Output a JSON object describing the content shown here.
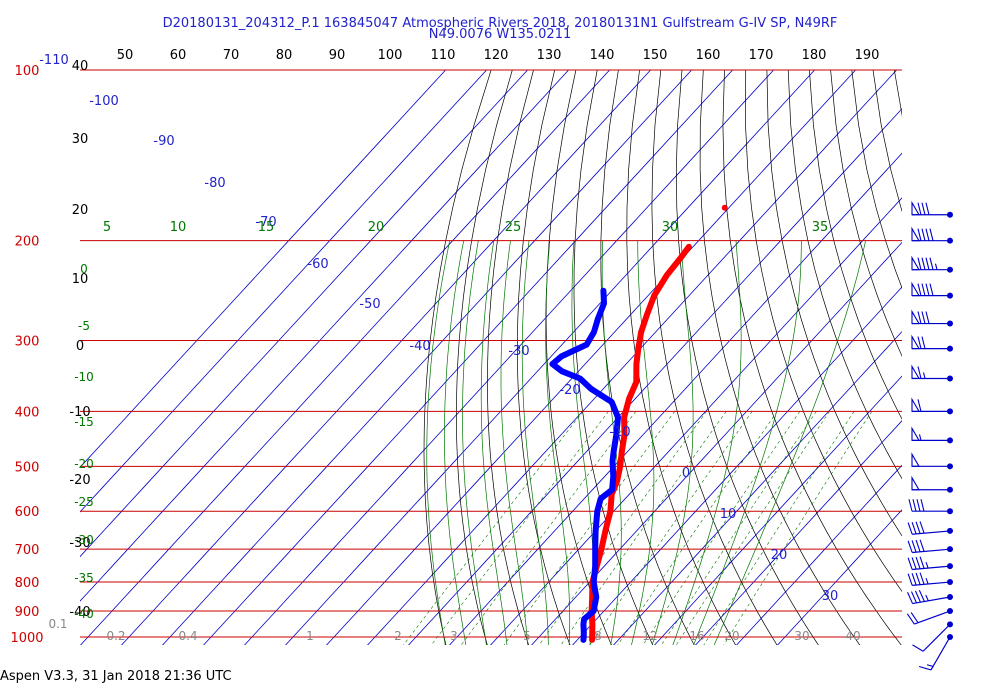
{
  "header": {
    "line1": "D20180131_204312_P.1 163845047 Atmospheric Rivers 2018, 20180131N1 Gulfstream G-IV SP, N49RF",
    "line2": "N49.0076 W135.0211"
  },
  "footer": {
    "text": "Aspen V3.3, 31 Jan 2018  21:36 UTC"
  },
  "colors": {
    "isobar": "#cc0000",
    "isotherm": "#0000cc",
    "dry_adiabat": "#000000",
    "moist_adiabat": "#007700",
    "mixing_ratio": "#007700",
    "temperature": "#ff0000",
    "dewpoint": "#0000ff",
    "wind_barb": "#0000cc",
    "top_scale_text": "#000000",
    "left_c_text": "#000000",
    "left_hpa_text": "#cc0000",
    "isotherm_label": "#2222cc",
    "theta_e_label": "#007700",
    "mixing_label": "#888888"
  },
  "chart_data": {
    "type": "skew-T log-P sounding",
    "top_axis_ticks": [
      "50",
      "60",
      "70",
      "80",
      "90",
      "100",
      "110",
      "120",
      "130",
      "140",
      "150",
      "160",
      "170",
      "180",
      "190"
    ],
    "left_axis_pressure_labels": [
      "100",
      "200",
      "300",
      "400",
      "500",
      "600",
      "700",
      "800",
      "900",
      "1000"
    ],
    "left_axis_temperature_labels": [
      "-110",
      "40",
      "30",
      "20",
      "10",
      "0",
      "-10",
      "-20",
      "-30",
      "-40"
    ],
    "isotherm_labels": [
      "-100",
      "-90",
      "-80",
      "-70",
      "-60",
      "-50",
      "-40",
      "-30",
      "-20",
      "-10",
      "0",
      "10",
      "20",
      "30"
    ],
    "theta_e_labels": [
      "5",
      "10",
      "15",
      "20",
      "25",
      "30",
      "35"
    ],
    "left_green_labels": [
      "0",
      "-5",
      "-10",
      "-15",
      "-20",
      "-25",
      "-30",
      "-35",
      "-40"
    ],
    "mixing_ratio_labels": [
      "0.1",
      "0.2",
      "0.4",
      "1",
      "2",
      "3",
      "5",
      "8",
      "12",
      "16",
      "20",
      "30",
      "40"
    ],
    "pressure_range_hpa": [
      100,
      1000
    ],
    "temperature_profile": {
      "name": "temperature",
      "points_hpa_c": [
        [
          1012,
          3.6
        ],
        [
          950,
          0.2
        ],
        [
          900,
          -3
        ],
        [
          850,
          -6
        ],
        [
          800,
          -9.3
        ],
        [
          750,
          -11.8
        ],
        [
          700,
          -14.5
        ],
        [
          650,
          -17.6
        ],
        [
          600,
          -20.8
        ],
        [
          560,
          -24.3
        ],
        [
          530,
          -26
        ],
        [
          500,
          -28.5
        ],
        [
          470,
          -31.5
        ],
        [
          440,
          -34.5
        ],
        [
          410,
          -38.5
        ],
        [
          380,
          -41.5
        ],
        [
          355,
          -43.5
        ],
        [
          330,
          -47.5
        ],
        [
          310,
          -50.5
        ],
        [
          290,
          -53.5
        ],
        [
          270,
          -56
        ],
        [
          250,
          -58.5
        ],
        [
          230,
          -60
        ],
        [
          215,
          -60.5
        ],
        [
          205,
          -61
        ]
      ],
      "isolated_point_hpa_c": [
        175,
        -61
      ]
    },
    "dewpoint_profile": {
      "name": "dewpoint",
      "points_hpa_c": [
        [
          1012,
          1.5
        ],
        [
          1000,
          0.9
        ],
        [
          980,
          -0.2
        ],
        [
          950,
          -2
        ],
        [
          930,
          -3
        ],
        [
          900,
          -2.5
        ],
        [
          850,
          -5
        ],
        [
          800,
          -9
        ],
        [
          750,
          -12.2
        ],
        [
          700,
          -16
        ],
        [
          650,
          -20
        ],
        [
          600,
          -24
        ],
        [
          570,
          -26
        ],
        [
          550,
          -25.2
        ],
        [
          520,
          -28
        ],
        [
          490,
          -31.5
        ],
        [
          470,
          -33.5
        ],
        [
          440,
          -36.5
        ],
        [
          410,
          -40
        ],
        [
          385,
          -45
        ],
        [
          365,
          -53
        ],
        [
          350,
          -58
        ],
        [
          340,
          -64
        ],
        [
          330,
          -68
        ],
        [
          320,
          -67.5
        ],
        [
          305,
          -64
        ],
        [
          290,
          -65
        ],
        [
          275,
          -67
        ],
        [
          258,
          -69
        ],
        [
          245,
          -72
        ]
      ]
    },
    "wind_barbs": {
      "points": [
        {
          "hpa": 1000,
          "dir_deg": 210,
          "speed_kt": 15
        },
        {
          "hpa": 950,
          "dir_deg": 225,
          "speed_kt": 10
        },
        {
          "hpa": 900,
          "dir_deg": 250,
          "speed_kt": 20
        },
        {
          "hpa": 850,
          "dir_deg": 260,
          "speed_kt": 45
        },
        {
          "hpa": 800,
          "dir_deg": 265,
          "speed_kt": 45
        },
        {
          "hpa": 750,
          "dir_deg": 265,
          "speed_kt": 45
        },
        {
          "hpa": 700,
          "dir_deg": 265,
          "speed_kt": 40
        },
        {
          "hpa": 650,
          "dir_deg": 265,
          "speed_kt": 40
        },
        {
          "hpa": 600,
          "dir_deg": 270,
          "speed_kt": 40
        },
        {
          "hpa": 550,
          "dir_deg": 270,
          "speed_kt": 50
        },
        {
          "hpa": 500,
          "dir_deg": 270,
          "speed_kt": 50
        },
        {
          "hpa": 450,
          "dir_deg": 270,
          "speed_kt": 55
        },
        {
          "hpa": 400,
          "dir_deg": 270,
          "speed_kt": 60
        },
        {
          "hpa": 350,
          "dir_deg": 270,
          "speed_kt": 65
        },
        {
          "hpa": 310,
          "dir_deg": 270,
          "speed_kt": 70
        },
        {
          "hpa": 280,
          "dir_deg": 270,
          "speed_kt": 80
        },
        {
          "hpa": 250,
          "dir_deg": 270,
          "speed_kt": 90
        },
        {
          "hpa": 225,
          "dir_deg": 270,
          "speed_kt": 95
        },
        {
          "hpa": 200,
          "dir_deg": 270,
          "speed_kt": 90
        },
        {
          "hpa": 180,
          "dir_deg": 270,
          "speed_kt": 80
        }
      ]
    },
    "grid": true,
    "legend": "none"
  }
}
